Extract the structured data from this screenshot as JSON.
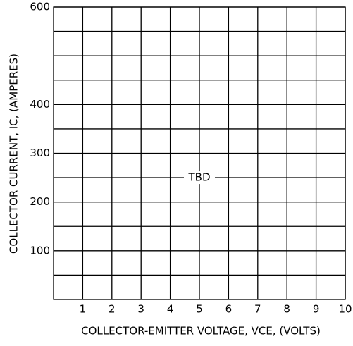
{
  "chart_data": {
    "type": "grid",
    "xlabel": "COLLECTOR-EMITTER VOLTAGE, VCE, (VOLTS)",
    "ylabel": "COLLECTOR CURRENT, IC, (AMPERES)",
    "xlim": [
      0,
      10
    ],
    "xticks": [
      1,
      2,
      3,
      4,
      5,
      6,
      7,
      8,
      9,
      10
    ],
    "ylim": [
      0,
      600
    ],
    "yticks": [
      100,
      200,
      300,
      400,
      600
    ],
    "minor_yticks": [
      50,
      150,
      250,
      350,
      450,
      500,
      550
    ],
    "grid": true,
    "annotations": [
      {
        "text": "TBD",
        "x": 5,
        "y": 250
      }
    ]
  }
}
